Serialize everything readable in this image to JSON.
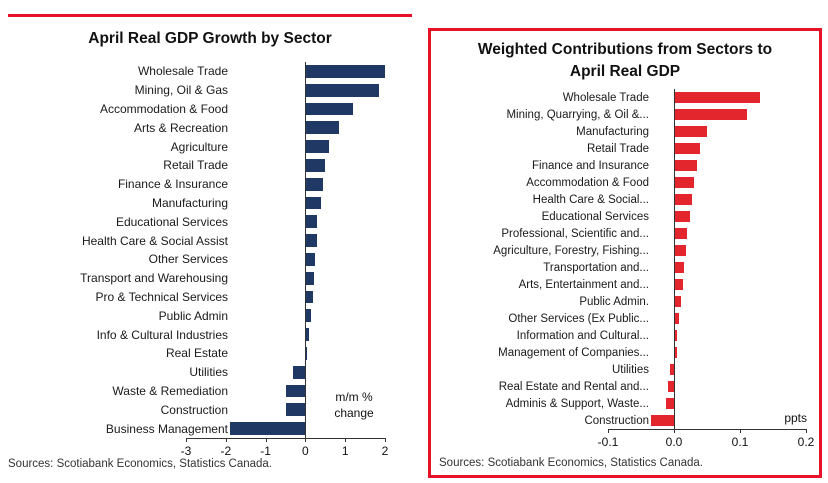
{
  "colors": {
    "accent": "#e8112a",
    "navy": "#1f3864",
    "red": "#e3262d",
    "axis": "#333333"
  },
  "panels": {
    "left": {
      "unit_note_line1": "m/m %",
      "unit_note_line2": "change",
      "source": "Sources: Scotiabank Economics, Statistics Canada."
    },
    "right": {
      "title_line1": "Weighted Contributions from Sectors to",
      "title_line2": "April Real GDP",
      "unit_note": "ppts",
      "source": "Sources: Scotiabank Economics, Statistics Canada."
    }
  },
  "chart_data": [
    {
      "type": "bar",
      "orientation": "horizontal",
      "title": "April Real GDP Growth by Sector",
      "xlabel": "m/m % change",
      "xlim": [
        -3,
        2
      ],
      "x_ticks": [
        {
          "v": -3,
          "label": "-3"
        },
        {
          "v": -2,
          "label": "-2"
        },
        {
          "v": -1,
          "label": "-1"
        },
        {
          "v": 0,
          "label": "0"
        },
        {
          "v": 1,
          "label": "1"
        },
        {
          "v": 2,
          "label": "2"
        }
      ],
      "grid": false,
      "bar_color": "#1f3864",
      "categories": [
        "Wholesale Trade",
        "Mining, Oil & Gas",
        "Accommodation & Food",
        "Arts & Recreation",
        "Agriculture",
        "Retail Trade",
        "Finance & Insurance",
        "Manufacturing",
        "Educational Services",
        "Health Care & Social Assist",
        "Other Services",
        "Transport and Warehousing",
        "Pro & Technical Services",
        "Public Admin",
        "Info & Cultural Industries",
        "Real Estate",
        "Utilities",
        "Waste & Remediation",
        "Construction",
        "Business Management"
      ],
      "values": [
        2.0,
        1.85,
        1.2,
        0.85,
        0.6,
        0.5,
        0.45,
        0.4,
        0.3,
        0.28,
        0.25,
        0.22,
        0.2,
        0.15,
        0.1,
        0.05,
        -0.3,
        -0.5,
        -0.5,
        -1.9
      ],
      "source": "Sources: Scotiabank Economics, Statistics Canada."
    },
    {
      "type": "bar",
      "orientation": "horizontal",
      "title": "Weighted Contributions from Sectors to April Real GDP",
      "xlabel": "ppts",
      "xlim": [
        -0.1,
        0.2
      ],
      "x_ticks": [
        {
          "v": -0.1,
          "label": "-0.1"
        },
        {
          "v": 0,
          "label": "0.0"
        },
        {
          "v": 0.1,
          "label": "0.1"
        },
        {
          "v": 0.2,
          "label": "0.2"
        }
      ],
      "grid": false,
      "bar_color": "#e3262d",
      "categories": [
        "Wholesale Trade",
        "Mining, Quarrying, & Oil &...",
        "Manufacturing",
        "Retail Trade",
        "Finance and Insurance",
        "Accommodation & Food",
        "Health Care & Social...",
        "Educational Services",
        "Professional, Scientific and...",
        "Agriculture, Forestry, Fishing...",
        "Transportation and...",
        "Arts, Entertainment and...",
        "Public Admin.",
        "Other Services (Ex Public...",
        "Information and Cultural...",
        "Management of Companies...",
        "Utilities",
        "Real Estate and Rental and...",
        "Adminis & Support, Waste...",
        "Construction"
      ],
      "values": [
        0.13,
        0.11,
        0.05,
        0.04,
        0.035,
        0.03,
        0.028,
        0.025,
        0.02,
        0.018,
        0.015,
        0.013,
        0.01,
        0.008,
        0.005,
        0.004,
        -0.006,
        -0.009,
        -0.012,
        -0.035
      ],
      "source": "Sources: Scotiabank Economics, Statistics Canada."
    }
  ]
}
